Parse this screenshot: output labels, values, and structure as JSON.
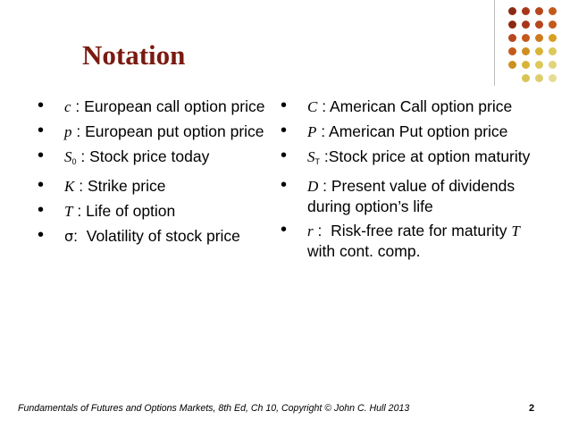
{
  "slide": {
    "title": "Notation",
    "page_number": "2",
    "footer": "Fundamentals of Futures and Options Markets, 8th Ed, Ch 10, Copyright © John C. Hull 2013"
  },
  "bullet_symbol": "•",
  "left_items": [
    {
      "var": "c",
      "sub": "",
      "sep": " : ",
      "desc": "European call option price"
    },
    {
      "var": "p",
      "sub": "",
      "sep": " : ",
      "desc": "European put option price"
    },
    {
      "var": "S",
      "sub": "0",
      "sep": " : ",
      "desc": "Stock price today"
    },
    {
      "var": "K",
      "sub": "",
      "sep": " : ",
      "desc": "Strike price"
    },
    {
      "var": "T",
      "sub": "",
      "sep": " : ",
      "desc": "Life of option"
    },
    {
      "var": "σ",
      "sub": "",
      "sep": ":  ",
      "desc": "Volatility of stock price",
      "upright": true
    }
  ],
  "right_items": [
    {
      "var": "C",
      "sub": "",
      "sep": " : ",
      "desc": "American Call option price"
    },
    {
      "var": "P",
      "sub": "",
      "sep": " : ",
      "desc": "American Put option price"
    },
    {
      "var": "S",
      "sub": "T",
      "sep": " :",
      "desc": "Stock price at option maturity"
    },
    {
      "var": "D",
      "sub": "",
      "sep": " : ",
      "desc": "Present value of dividends during option’s life"
    },
    {
      "var": "r",
      "sub": "",
      "sep": " :  ",
      "desc_pre": "Risk-free rate for maturity ",
      "desc_var": "T",
      "desc_post": " with cont. comp."
    }
  ],
  "colors": {
    "title": "#7a1a10",
    "dot_grid": [
      [
        "#8b2a12",
        "#a8361a",
        "#b8461e",
        "#c35a1c"
      ],
      [
        "#8b2a12",
        "#a8361a",
        "#b8461e",
        "#c35a1c"
      ],
      [
        "#b8461e",
        "#c35a1c",
        "#cd7a1f",
        "#d8a020"
      ],
      [
        "#c35a1c",
        "#cd8f20",
        "#d8b53a",
        "#ddc85a"
      ],
      [
        "#cd8f20",
        "#d8b53a",
        "#ddc85a",
        "#e2d47c"
      ],
      [
        "",
        "#d8c455",
        "#ddce6f",
        "#e6dc96"
      ]
    ]
  }
}
